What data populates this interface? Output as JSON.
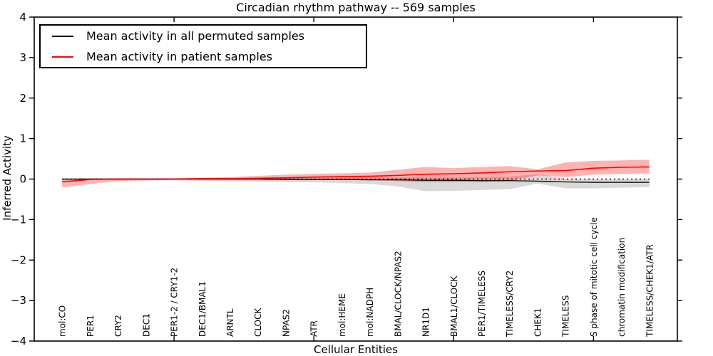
{
  "chart_data": {
    "type": "line",
    "title": "Circadian rhythm pathway -- 569 samples",
    "xlabel": "Cellular Entities",
    "ylabel": "Inferred Activity",
    "ylim": [
      -4,
      4
    ],
    "yticks": [
      -4,
      -3,
      -2,
      -1,
      0,
      1,
      2,
      3,
      4
    ],
    "xticks": [
      5,
      10,
      15,
      20
    ],
    "grid": false,
    "legend_position": "upper-left",
    "zero_line": {
      "style": "dotted",
      "color": "#000000",
      "value": 0
    },
    "categories": [
      "mol:CO",
      "PER1",
      "CRY2",
      "DEC1",
      "PER1-2 / CRY1-2",
      "DEC1/BMAL1",
      "ARNTL",
      "CLOCK",
      "NPAS2",
      "ATR",
      "mol:HEME",
      "mol:NADPH",
      "BMAL/CLOCK/NPAS2",
      "NR1D1",
      "BMAL1/CLOCK",
      "PER1/TIMELESS",
      "TIMELESS/CRY2",
      "CHEK1",
      "TIMELESS",
      "S phase of mitotic cell cycle",
      "chromatin modification",
      "TIMELESS/CHEK1/ATR"
    ],
    "series": [
      {
        "name": "Mean activity in all permuted samples",
        "color": "#000000",
        "band_color": "rgba(0,0,0,0.15)",
        "line_width": 1.3,
        "values": [
          0,
          0,
          0,
          0,
          0,
          0,
          0,
          0,
          -0.01,
          -0.01,
          -0.01,
          -0.02,
          -0.02,
          -0.03,
          -0.03,
          -0.04,
          -0.04,
          -0.05,
          -0.07,
          -0.08,
          -0.08,
          -0.08
        ],
        "band_upper": [
          0.02,
          0.02,
          0.02,
          0.02,
          0.02,
          0.02,
          0.03,
          0.03,
          0.03,
          0.04,
          0.04,
          0.05,
          0.05,
          0.05,
          0.05,
          0.05,
          0.06,
          0.12,
          0.01,
          0.0,
          0.0,
          0.01
        ],
        "band_lower": [
          -0.02,
          -0.02,
          -0.03,
          -0.03,
          -0.03,
          -0.04,
          -0.05,
          -0.06,
          -0.07,
          -0.08,
          -0.1,
          -0.12,
          -0.18,
          -0.3,
          -0.29,
          -0.27,
          -0.25,
          -0.11,
          -0.23,
          -0.23,
          -0.21,
          -0.2
        ]
      },
      {
        "name": "Mean activity in patient samples",
        "color": "#ff0000",
        "band_color": "rgba(255,0,0,0.30)",
        "line_width": 1.6,
        "values": [
          -0.07,
          -0.01,
          0,
          0,
          0,
          0.01,
          0.01,
          0.02,
          0.03,
          0.05,
          0.06,
          0.07,
          0.09,
          0.12,
          0.13,
          0.15,
          0.18,
          0.2,
          0.21,
          0.27,
          0.29,
          0.3
        ],
        "band_upper": [
          0.0,
          0.02,
          0.02,
          0.02,
          0.02,
          0.03,
          0.05,
          0.08,
          0.11,
          0.13,
          0.14,
          0.16,
          0.23,
          0.3,
          0.27,
          0.3,
          0.32,
          0.24,
          0.41,
          0.45,
          0.46,
          0.48
        ],
        "band_lower": [
          -0.2,
          -0.12,
          -0.05,
          -0.03,
          -0.02,
          -0.02,
          -0.02,
          -0.01,
          -0.01,
          -0.01,
          -0.01,
          -0.02,
          -0.05,
          -0.08,
          -0.08,
          -0.07,
          -0.05,
          0.09,
          0.05,
          0.11,
          0.13,
          0.14
        ]
      }
    ]
  }
}
